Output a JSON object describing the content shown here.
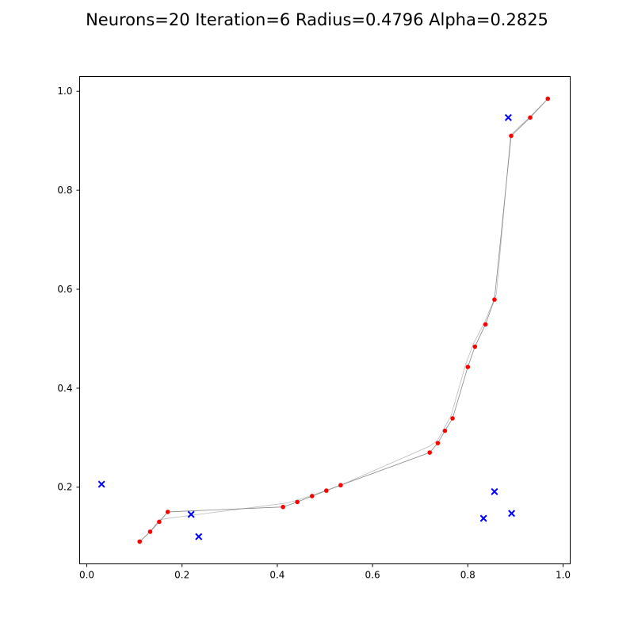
{
  "chart_data": {
    "type": "scatter",
    "title": "Neurons=20 Iteration=6 Radius=0.4796 Alpha=0.2825",
    "xlabel": "",
    "ylabel": "",
    "xlim": [
      -0.015,
      1.015
    ],
    "ylim": [
      0.045,
      1.03
    ],
    "xticks": [
      0.0,
      0.2,
      0.4,
      0.6,
      0.8,
      1.0
    ],
    "yticks": [
      0.2,
      0.4,
      0.6,
      0.8,
      1.0
    ],
    "xtick_labels": [
      "0.0",
      "0.2",
      "0.4",
      "0.6",
      "0.8",
      "1.0"
    ],
    "ytick_labels": [
      "0.2",
      "0.4",
      "0.6",
      "0.8",
      "1.0"
    ],
    "grid": false,
    "series": [
      {
        "kind": "neurons",
        "marker": "dot",
        "color": "#ff0000",
        "line_color": "#888888",
        "x": [
          0.111,
          0.133,
          0.152,
          0.17,
          0.412,
          0.442,
          0.473,
          0.503,
          0.533,
          0.72,
          0.737,
          0.752,
          0.768,
          0.8,
          0.815,
          0.837,
          0.856,
          0.891,
          0.931,
          0.968
        ],
        "y": [
          0.09,
          0.11,
          0.13,
          0.15,
          0.16,
          0.17,
          0.182,
          0.193,
          0.204,
          0.27,
          0.289,
          0.314,
          0.339,
          0.443,
          0.484,
          0.529,
          0.579,
          0.91,
          0.947,
          0.985
        ]
      },
      {
        "kind": "previous-path",
        "color": "#bbbbbb",
        "x": [
          0.111,
          0.133,
          0.152,
          0.17,
          0.42,
          0.45,
          0.48,
          0.51,
          0.54,
          0.718,
          0.736,
          0.75,
          0.765,
          0.796,
          0.812,
          0.836,
          0.86,
          0.89,
          0.93,
          0.968
        ],
        "y": [
          0.09,
          0.11,
          0.134,
          0.137,
          0.168,
          0.176,
          0.186,
          0.196,
          0.207,
          0.282,
          0.294,
          0.318,
          0.345,
          0.45,
          0.49,
          0.535,
          0.59,
          0.912,
          0.948,
          0.985
        ]
      },
      {
        "kind": "cities",
        "marker": "x",
        "color": "#0000ff",
        "x": [
          0.031,
          0.219,
          0.235,
          0.833,
          0.856,
          0.892,
          0.885
        ],
        "y": [
          0.206,
          0.145,
          0.1,
          0.137,
          0.191,
          0.147,
          0.947
        ]
      }
    ]
  }
}
